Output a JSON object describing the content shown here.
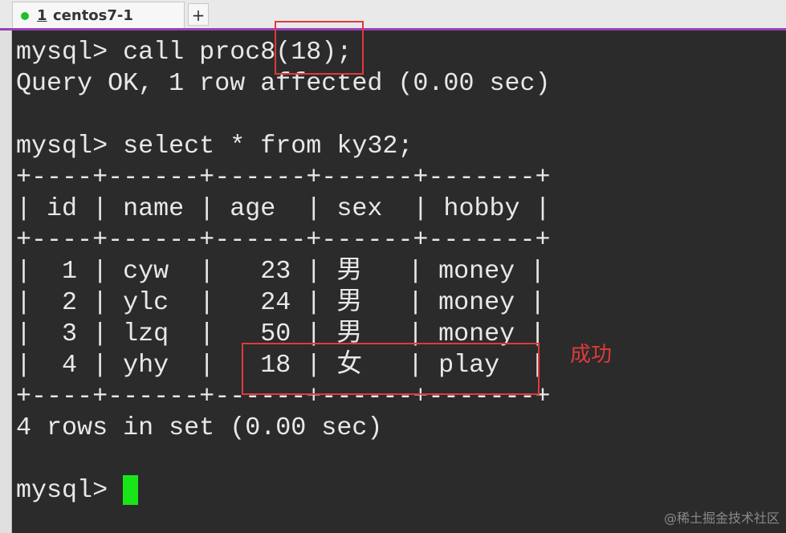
{
  "tab": {
    "number": "1",
    "title": "centos7-1",
    "add": "+"
  },
  "terminal": {
    "lines": [
      "mysql> call proc8(18);",
      "Query OK, 1 row affected (0.00 sec)",
      "mysql> select * from ky32;",
      "+----+------+------+------+-------+",
      "| id | name | age  | sex  | hobby |",
      "+----+------+------+------+-------+",
      "|  1 | cyw  |   23 | 男   | money |",
      "|  2 | ylc  |   24 | 男   | money |",
      "|  3 | lzq  |   50 | 男   | money |",
      "|  4 | yhy  |   18 | 女   | play  |",
      "+----+------+------+------+-------+",
      "4 rows in set (0.00 sec)",
      "mysql> "
    ]
  },
  "annotation": "成功",
  "watermark": "@稀土掘金技术社区"
}
